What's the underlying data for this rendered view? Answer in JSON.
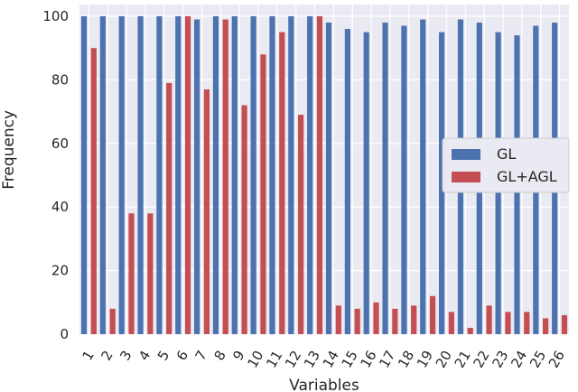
{
  "chart_data": {
    "type": "bar",
    "xlabel": "Variables",
    "ylabel": "Frequency",
    "ylim": [
      0,
      100
    ],
    "yticks": [
      0,
      20,
      40,
      60,
      80,
      100
    ],
    "grid": true,
    "legend_position": "center-right",
    "categories": [
      "1",
      "2",
      "3",
      "4",
      "5",
      "6",
      "7",
      "8",
      "9",
      "10",
      "11",
      "12",
      "13",
      "14",
      "15",
      "16",
      "17",
      "18",
      "19",
      "20",
      "21",
      "22",
      "23",
      "24",
      "25",
      "26"
    ],
    "series": [
      {
        "name": "GL",
        "color": "#4c72b0",
        "values": [
          100,
          100,
          100,
          100,
          100,
          100,
          99,
          100,
          100,
          100,
          100,
          100,
          100,
          98,
          96,
          95,
          98,
          97,
          99,
          95,
          99,
          98,
          95,
          94,
          97,
          98
        ]
      },
      {
        "name": "GL+AGL",
        "color": "#c44e52",
        "values": [
          90,
          8,
          38,
          38,
          79,
          100,
          77,
          99,
          72,
          88,
          95,
          69,
          100,
          9,
          8,
          10,
          8,
          9,
          12,
          7,
          2,
          9,
          7,
          7,
          5,
          6
        ]
      }
    ]
  }
}
